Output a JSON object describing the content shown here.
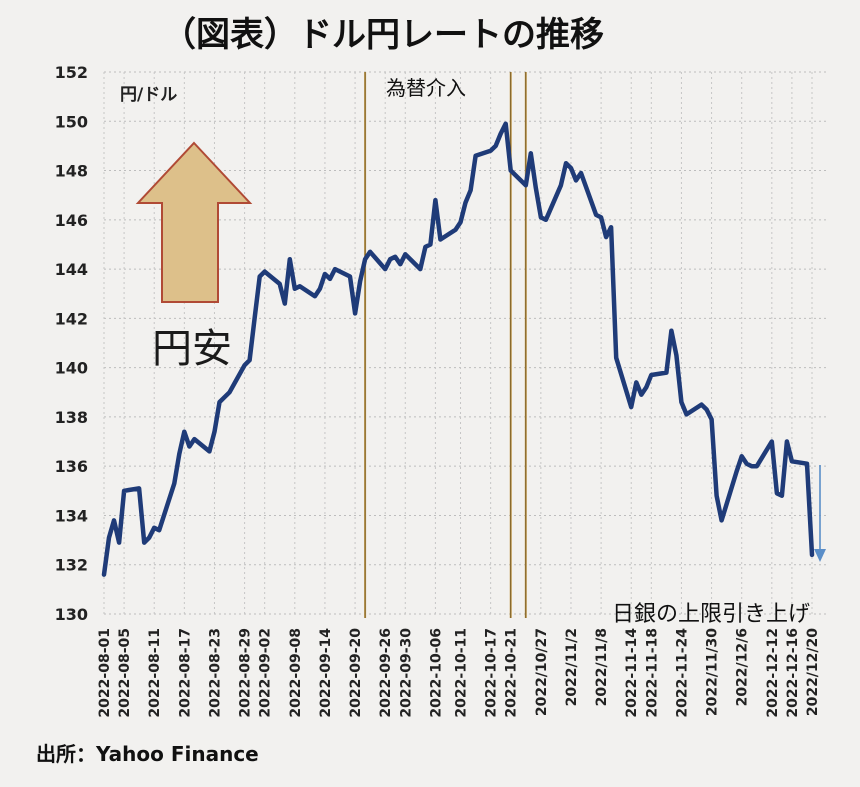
{
  "chart_data": {
    "type": "line",
    "title": "（図表）ドル円レートの推移",
    "ylabel": "円/ドル",
    "ylim": [
      130,
      152
    ],
    "yticks": [
      130,
      132,
      134,
      136,
      138,
      140,
      142,
      144,
      146,
      148,
      150,
      152
    ],
    "xtick_labels": [
      "2022-08-01",
      "2022-08-05",
      "2022-08-11",
      "2022-08-17",
      "2022-08-23",
      "2022-08-29",
      "2022-09-02",
      "2022-09-08",
      "2022-09-14",
      "2022-09-20",
      "2022-09-26",
      "2022-09-30",
      "2022-10-06",
      "2022-10-11",
      "2022-10-17",
      "2022-10-21",
      "2022/10/27",
      "2022/11/2",
      "2022/11/8",
      "2022-11-14",
      "2022-11-18",
      "2022-11-24",
      "2022/11/30",
      "2022/12/6",
      "2022-12-12",
      "2022-12-16",
      "2022/12/20"
    ],
    "xtick_dates": [
      "2022-08-01",
      "2022-08-05",
      "2022-08-11",
      "2022-08-17",
      "2022-08-23",
      "2022-08-29",
      "2022-09-02",
      "2022-09-08",
      "2022-09-14",
      "2022-09-20",
      "2022-09-26",
      "2022-09-30",
      "2022-10-06",
      "2022-10-11",
      "2022-10-17",
      "2022-10-21",
      "2022-10-27",
      "2022-11-02",
      "2022-11-08",
      "2022-11-14",
      "2022-11-18",
      "2022-11-24",
      "2022-11-30",
      "2022-12-06",
      "2022-12-12",
      "2022-12-16",
      "2022-12-20"
    ],
    "grid": true,
    "series": [
      {
        "name": "",
        "color": "#1f3b78",
        "points": [
          [
            "2022-08-01",
            131.6
          ],
          [
            "2022-08-02",
            133.1
          ],
          [
            "2022-08-03",
            133.8
          ],
          [
            "2022-08-04",
            132.9
          ],
          [
            "2022-08-05",
            135.0
          ],
          [
            "2022-08-08",
            135.1
          ],
          [
            "2022-08-09",
            132.9
          ],
          [
            "2022-08-10",
            133.1
          ],
          [
            "2022-08-11",
            133.5
          ],
          [
            "2022-08-12",
            133.4
          ],
          [
            "2022-08-15",
            135.3
          ],
          [
            "2022-08-16",
            136.5
          ],
          [
            "2022-08-17",
            137.4
          ],
          [
            "2022-08-18",
            136.8
          ],
          [
            "2022-08-19",
            137.1
          ],
          [
            "2022-08-22",
            136.6
          ],
          [
            "2022-08-23",
            137.4
          ],
          [
            "2022-08-24",
            138.6
          ],
          [
            "2022-08-25",
            138.8
          ],
          [
            "2022-08-26",
            139.0
          ],
          [
            "2022-08-29",
            140.1
          ],
          [
            "2022-08-30",
            140.3
          ],
          [
            "2022-08-31",
            142.0
          ],
          [
            "2022-09-01",
            143.7
          ],
          [
            "2022-09-02",
            143.9
          ],
          [
            "2022-09-05",
            143.4
          ],
          [
            "2022-09-06",
            142.6
          ],
          [
            "2022-09-07",
            144.4
          ],
          [
            "2022-09-08",
            143.2
          ],
          [
            "2022-09-09",
            143.3
          ],
          [
            "2022-09-12",
            142.9
          ],
          [
            "2022-09-13",
            143.2
          ],
          [
            "2022-09-14",
            143.8
          ],
          [
            "2022-09-15",
            143.6
          ],
          [
            "2022-09-16",
            144.0
          ],
          [
            "2022-09-19",
            143.7
          ],
          [
            "2022-09-20",
            142.2
          ],
          [
            "2022-09-21",
            143.5
          ],
          [
            "2022-09-22",
            144.4
          ],
          [
            "2022-09-23",
            144.7
          ],
          [
            "2022-09-26",
            144.0
          ],
          [
            "2022-09-27",
            144.4
          ],
          [
            "2022-09-28",
            144.5
          ],
          [
            "2022-09-29",
            144.2
          ],
          [
            "2022-09-30",
            144.6
          ],
          [
            "2022-10-03",
            144.0
          ],
          [
            "2022-10-04",
            144.9
          ],
          [
            "2022-10-05",
            145.0
          ],
          [
            "2022-10-06",
            146.8
          ],
          [
            "2022-10-07",
            145.2
          ],
          [
            "2022-10-10",
            145.6
          ],
          [
            "2022-10-11",
            145.9
          ],
          [
            "2022-10-12",
            146.7
          ],
          [
            "2022-10-13",
            147.2
          ],
          [
            "2022-10-14",
            148.6
          ],
          [
            "2022-10-17",
            148.8
          ],
          [
            "2022-10-18",
            149.0
          ],
          [
            "2022-10-19",
            149.5
          ],
          [
            "2022-10-20",
            149.9
          ],
          [
            "2022-10-21",
            148.0
          ],
          [
            "2022-10-24",
            147.4
          ],
          [
            "2022-10-25",
            148.7
          ],
          [
            "2022-10-26",
            147.3
          ],
          [
            "2022-10-27",
            146.1
          ],
          [
            "2022-10-28",
            146.0
          ],
          [
            "2022-10-31",
            147.4
          ],
          [
            "2022-11-01",
            148.3
          ],
          [
            "2022-11-02",
            148.1
          ],
          [
            "2022-11-03",
            147.6
          ],
          [
            "2022-11-04",
            147.9
          ],
          [
            "2022-11-07",
            146.2
          ],
          [
            "2022-11-08",
            146.1
          ],
          [
            "2022-11-09",
            145.3
          ],
          [
            "2022-11-10",
            145.7
          ],
          [
            "2022-11-11",
            140.4
          ],
          [
            "2022-11-14",
            138.4
          ],
          [
            "2022-11-15",
            139.4
          ],
          [
            "2022-11-16",
            138.9
          ],
          [
            "2022-11-17",
            139.2
          ],
          [
            "2022-11-18",
            139.7
          ],
          [
            "2022-11-21",
            139.8
          ],
          [
            "2022-11-22",
            141.5
          ],
          [
            "2022-11-23",
            140.5
          ],
          [
            "2022-11-24",
            138.6
          ],
          [
            "2022-11-25",
            138.1
          ],
          [
            "2022-11-28",
            138.5
          ],
          [
            "2022-11-29",
            138.3
          ],
          [
            "2022-11-30",
            137.9
          ],
          [
            "2022-12-01",
            134.8
          ],
          [
            "2022-12-02",
            133.8
          ],
          [
            "2022-12-05",
            135.8
          ],
          [
            "2022-12-06",
            136.4
          ],
          [
            "2022-12-07",
            136.1
          ],
          [
            "2022-12-08",
            136.0
          ],
          [
            "2022-12-09",
            136.0
          ],
          [
            "2022-12-12",
            137.0
          ],
          [
            "2022-12-13",
            134.9
          ],
          [
            "2022-12-14",
            134.8
          ],
          [
            "2022-12-15",
            137.0
          ],
          [
            "2022-12-16",
            136.2
          ],
          [
            "2022-12-19",
            136.1
          ],
          [
            "2022-12-20",
            132.4
          ]
        ]
      }
    ],
    "annotations": {
      "intervention_label": "為替介入",
      "intervention_dates": [
        "2022-09-22",
        "2022-10-21",
        "2022-10-24"
      ],
      "intervention_line_color": "#c8a050",
      "boj_label": "日銀の上限引き上げ",
      "yen_weak_label": "円安",
      "arrow_fill": "#ddc08a",
      "arrow_stroke": "#b04a35",
      "down_arrow_color": "#5a8ec8"
    }
  },
  "source": "出所：Yahoo Finance"
}
